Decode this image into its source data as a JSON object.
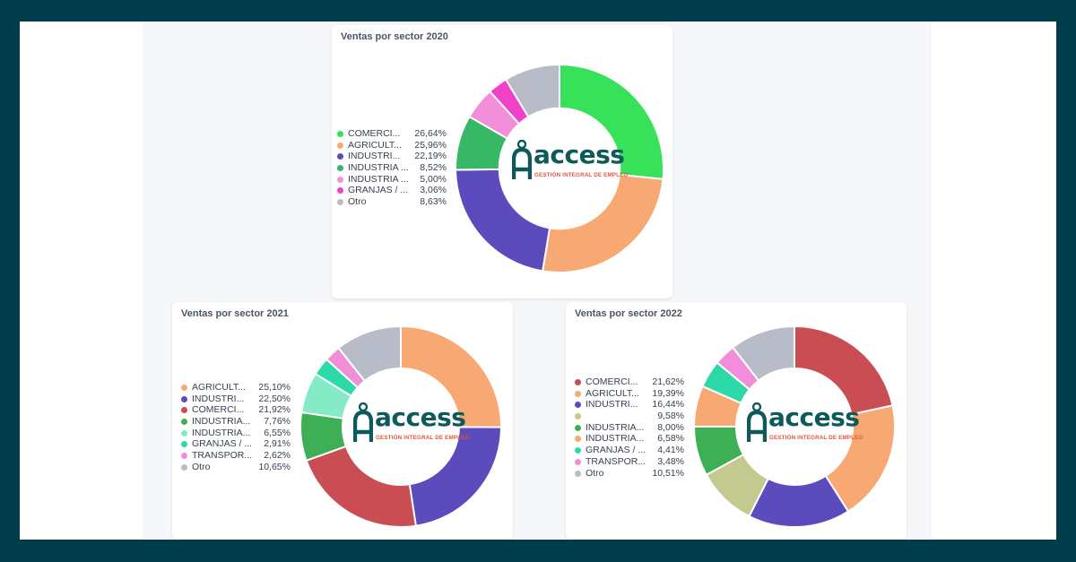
{
  "colors": {
    "frame": "#003d4c",
    "logo_teal": "#0e5a5a",
    "logo_orange": "#e0573a"
  },
  "logo": {
    "name": "access",
    "tagline": "GESTIÓN INTEGRAL DE EMPLEO"
  },
  "chart_data": [
    {
      "type": "pie",
      "title": "Ventas por sector 2020",
      "legend_position": "left",
      "series": [
        {
          "name": "COMERCI...",
          "value_label": "26,64%",
          "value": 26.64,
          "color": "#37e15a"
        },
        {
          "name": "AGRICULT...",
          "value_label": "25,96%",
          "value": 25.96,
          "color": "#f7a873"
        },
        {
          "name": "INDUSTRI...",
          "value_label": "22,19%",
          "value": 22.19,
          "color": "#5b4bbd"
        },
        {
          "name": "INDUSTRIA ...",
          "value_label": "8,52%",
          "value": 8.52,
          "color": "#36b866"
        },
        {
          "name": "INDUSTRIA ...",
          "value_label": "5,00%",
          "value": 5.0,
          "color": "#f28ed9"
        },
        {
          "name": "GRANJAS / ...",
          "value_label": "3,06%",
          "value": 3.06,
          "color": "#f042c9"
        },
        {
          "name": "Otro",
          "value_label": "8,63%",
          "value": 8.63,
          "color": "#b8bcc8"
        }
      ]
    },
    {
      "type": "pie",
      "title": "Ventas por sector 2021",
      "legend_position": "left",
      "series": [
        {
          "name": "AGRICULT...",
          "value_label": "25,10%",
          "value": 25.1,
          "color": "#f7a873"
        },
        {
          "name": "INDUSTRI...",
          "value_label": "22,50%",
          "value": 22.5,
          "color": "#5b4bbd"
        },
        {
          "name": "COMERCI...",
          "value_label": "21,92%",
          "value": 21.92,
          "color": "#c94d52"
        },
        {
          "name": "INDUSTRIA...",
          "value_label": "7,76%",
          "value": 7.76,
          "color": "#3eaf55"
        },
        {
          "name": "INDUSTRIA...",
          "value_label": "6,55%",
          "value": 6.55,
          "color": "#84ebc6"
        },
        {
          "name": "GRANJAS / ...",
          "value_label": "2,91%",
          "value": 2.91,
          "color": "#2cd9a8"
        },
        {
          "name": "TRANSPOR...",
          "value_label": "2,62%",
          "value": 2.62,
          "color": "#f28ed9"
        },
        {
          "name": "Otro",
          "value_label": "10,65%",
          "value": 10.65,
          "color": "#b8bcc8"
        }
      ]
    },
    {
      "type": "pie",
      "title": "Ventas por sector 2022",
      "legend_position": "left",
      "series": [
        {
          "name": "COMERCI...",
          "value_label": "21,62%",
          "value": 21.62,
          "color": "#c94d52"
        },
        {
          "name": "AGRICULT...",
          "value_label": "19,39%",
          "value": 19.39,
          "color": "#f7a873"
        },
        {
          "name": "INDUSTRI...",
          "value_label": "16,44%",
          "value": 16.44,
          "color": "#5b4bbd"
        },
        {
          "name": "",
          "value_label": "9,58%",
          "value": 9.58,
          "color": "#c3c98f"
        },
        {
          "name": "INDUSTRIA...",
          "value_label": "8,00%",
          "value": 8.0,
          "color": "#3eaf55"
        },
        {
          "name": "INDUSTRIA...",
          "value_label": "6,58%",
          "value": 6.58,
          "color": "#f7a873"
        },
        {
          "name": "GRANJAS / ...",
          "value_label": "4,41%",
          "value": 4.41,
          "color": "#2cd9a8"
        },
        {
          "name": "TRANSPOR...",
          "value_label": "3,48%",
          "value": 3.48,
          "color": "#f28ed9"
        },
        {
          "name": "Otro",
          "value_label": "10,51%",
          "value": 10.51,
          "color": "#b8bcc8"
        }
      ]
    }
  ]
}
